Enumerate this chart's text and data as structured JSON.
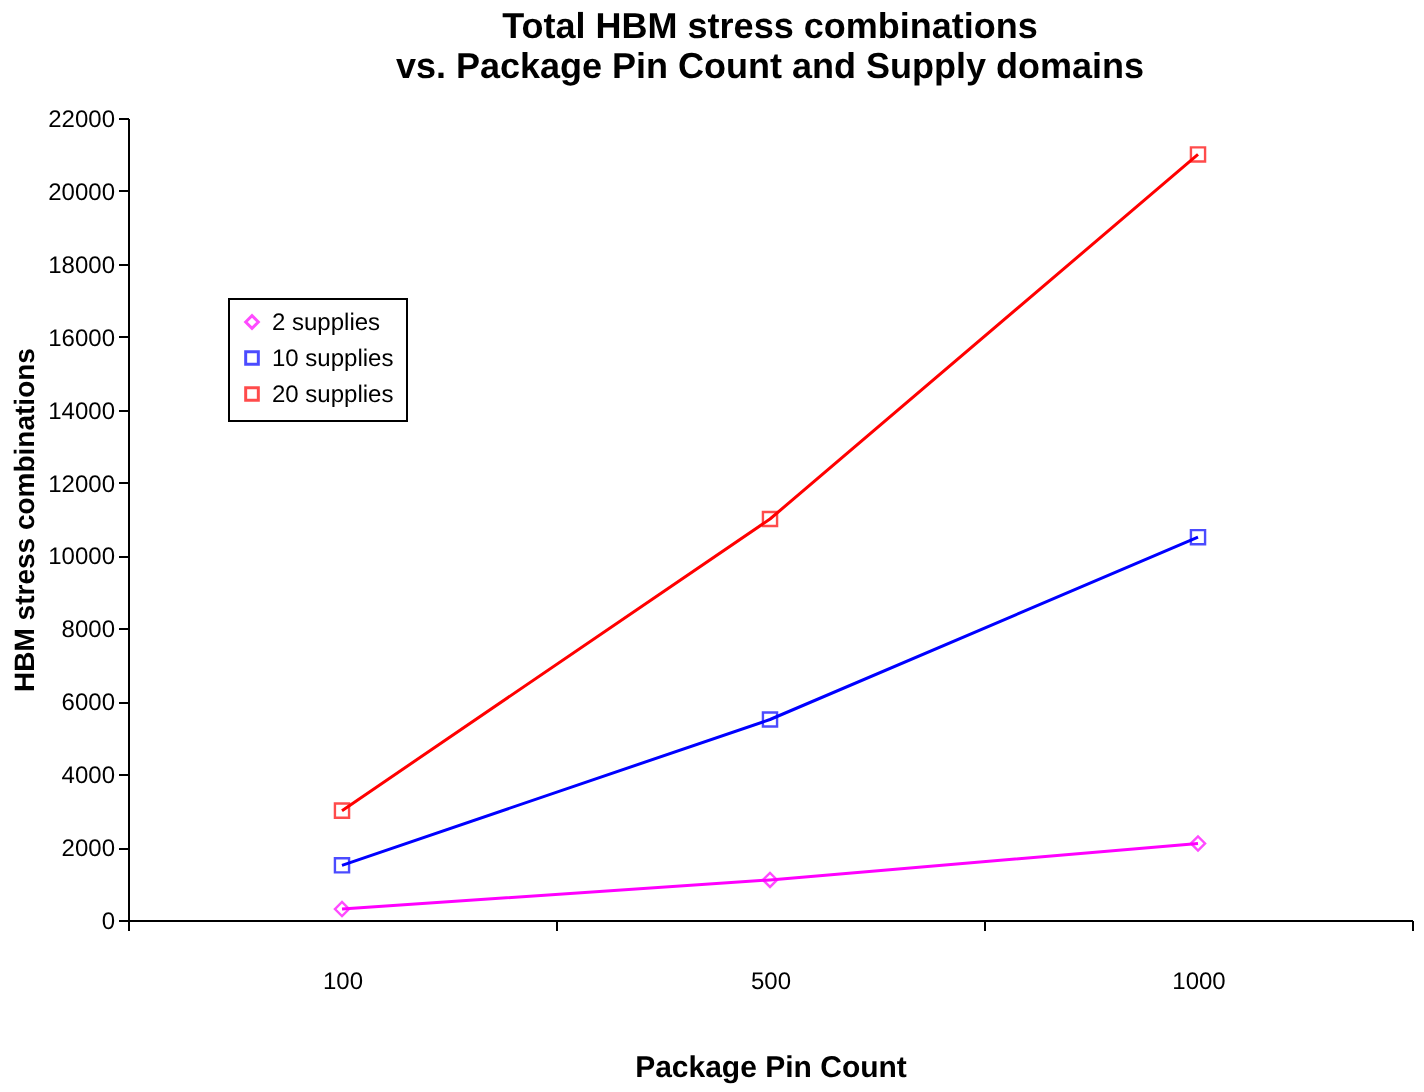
{
  "chart_data": {
    "type": "line",
    "title": "Total HBM stress combinations\nvs. Package Pin Count and Supply domains",
    "xlabel": "Package Pin Count",
    "ylabel": "HBM stress combinations",
    "categories": [
      "100",
      "500",
      "1000"
    ],
    "series": [
      {
        "name": "2 supplies",
        "color": "#ff00ff",
        "values": [
          300,
          1100,
          2100
        ],
        "marker": "diamond"
      },
      {
        "name": "10 supplies",
        "color": "#0000ff",
        "values": [
          1500,
          5500,
          10500
        ],
        "marker": "square"
      },
      {
        "name": "20 supplies",
        "color": "#ff0000",
        "values": [
          3000,
          11000,
          21000
        ],
        "marker": "square"
      }
    ],
    "ylim": [
      0,
      22000
    ],
    "yticks": [
      0,
      2000,
      4000,
      6000,
      8000,
      10000,
      12000,
      14000,
      16000,
      18000,
      20000,
      22000
    ],
    "grid": false,
    "legend": "top left",
    "line_style": "solid"
  }
}
